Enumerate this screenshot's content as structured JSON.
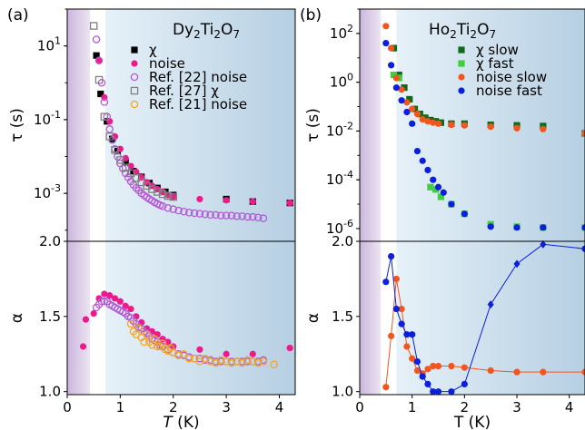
{
  "colors": {
    "black": "#000000",
    "pink": "#ee1a8c",
    "purple_open": "#b45ad6",
    "gray_open": "#808080",
    "orange_open": "#f5a623",
    "dark_green": "#0f6b17",
    "light_green": "#3ecf3e",
    "orange_red": "#f2561d",
    "blue": "#0a1fe0",
    "band_purple": "#cbb6dd",
    "band_blue_light": "#e6f1f8",
    "band_blue_dark": "#b6cfe2"
  },
  "chart_data": [
    {
      "id": "a-tau",
      "type": "scatter",
      "panel_label": "(a)",
      "title": "Dy₂Ti₂O₇",
      "title_parts": [
        "Dy",
        "2",
        "Ti",
        "2",
        "O",
        "7"
      ],
      "ylabel": "τ (s)",
      "xlabel": "",
      "xlim": [
        0,
        4.3
      ],
      "ylim": [
        5e-05,
        100
      ],
      "yscale": "log",
      "yticks": [
        {
          "v": 10,
          "label": "10",
          "sup": "1"
        },
        {
          "v": 0.1,
          "label": "10",
          "sup": "-1"
        },
        {
          "v": 0.001,
          "label": "10",
          "sup": "-3"
        }
      ],
      "legend": "top-right",
      "series": [
        {
          "name": "χ",
          "marker": "square-filled",
          "color": "#000000",
          "x": [
            0.55,
            0.63,
            0.75,
            0.85,
            0.95,
            1.1,
            1.25,
            1.4,
            1.55,
            1.7,
            1.85,
            2.0,
            3.0,
            3.5,
            4.2
          ],
          "y": [
            5.5,
            0.5,
            0.09,
            0.03,
            0.014,
            0.007,
            0.004,
            0.0028,
            0.0019,
            0.0014,
            0.0011,
            0.0009,
            0.0007,
            0.0006,
            0.00055
          ]
        },
        {
          "name": "noise",
          "marker": "circle-filled",
          "color": "#ee1a8c",
          "x": [
            0.6,
            0.7,
            0.8,
            0.9,
            1.0,
            1.1,
            1.2,
            1.3,
            1.4,
            1.5,
            1.6,
            1.7,
            1.8,
            1.9,
            2.0,
            2.5,
            3.0,
            3.5,
            4.2
          ],
          "y": [
            4.0,
            0.4,
            0.09,
            0.035,
            0.016,
            0.009,
            0.0055,
            0.0038,
            0.0027,
            0.002,
            0.0016,
            0.0013,
            0.0011,
            0.0009,
            0.0008,
            0.0007,
            0.00065,
            0.0006,
            0.00055
          ]
        },
        {
          "name": "Ref. [22] noise",
          "marker": "circle-open",
          "color": "#b45ad6",
          "x": [
            0.55,
            0.6,
            0.65,
            0.7,
            0.75,
            0.8,
            0.85,
            0.9,
            0.95,
            1.0,
            1.05,
            1.1,
            1.15,
            1.2,
            1.25,
            1.3,
            1.35,
            1.4,
            1.45,
            1.5,
            1.55,
            1.6,
            1.65,
            1.7,
            1.75,
            1.8,
            1.9,
            2.0,
            2.1,
            2.2,
            2.3,
            2.4,
            2.5,
            2.6,
            2.7,
            2.8,
            2.9,
            3.0,
            3.1,
            3.2,
            3.3,
            3.4,
            3.5,
            3.6,
            3.7
          ],
          "y": [
            15,
            4,
            1.0,
            0.3,
            0.12,
            0.055,
            0.028,
            0.016,
            0.01,
            0.0065,
            0.0047,
            0.0035,
            0.0027,
            0.0021,
            0.0017,
            0.0014,
            0.0012,
            0.001,
            0.00088,
            0.00078,
            0.0007,
            0.00063,
            0.00057,
            0.00052,
            0.00048,
            0.00045,
            0.0004,
            0.00037,
            0.00034,
            0.00032,
            0.0003,
            0.00029,
            0.00028,
            0.00027,
            0.00026,
            0.00026,
            0.00025,
            0.00025,
            0.00025,
            0.00024,
            0.00024,
            0.00023,
            0.00023,
            0.00022,
            0.00021
          ]
        },
        {
          "name": "Ref. [27] χ",
          "marker": "square-open",
          "color": "#808080",
          "x": [
            0.5,
            0.6,
            0.7,
            0.8,
            0.9,
            1.0,
            1.1,
            1.2,
            1.3,
            1.4,
            1.5,
            1.6,
            1.7,
            1.8,
            1.9,
            2.0
          ],
          "y": [
            35,
            1.2,
            0.12,
            0.035,
            0.015,
            0.008,
            0.005,
            0.0035,
            0.0026,
            0.002,
            0.0016,
            0.0013,
            0.0011,
            0.00095,
            0.00085,
            0.0008
          ]
        },
        {
          "name": "Ref. [21] noise",
          "marker": "circle-open",
          "color": "#f5a623",
          "x": [],
          "y": []
        }
      ]
    },
    {
      "id": "a-alpha",
      "type": "scatter",
      "ylabel": "α",
      "xlabel_parts": [
        "T",
        " (K)"
      ],
      "xlim": [
        0,
        4.3
      ],
      "ylim": [
        0.98,
        2.0
      ],
      "yticks": [
        {
          "v": 1.0,
          "label": "1.0"
        },
        {
          "v": 1.5,
          "label": "1.5"
        },
        {
          "v": 2.0,
          "label": "2.0"
        }
      ],
      "xticks": [
        0,
        1,
        2,
        3,
        4
      ],
      "series": [
        {
          "name": "noise",
          "marker": "circle-filled",
          "color": "#ee1a8c",
          "x": [
            0.3,
            0.35,
            0.5,
            0.6,
            0.7,
            0.8,
            0.9,
            1.0,
            1.1,
            1.2,
            1.3,
            1.4,
            1.5,
            1.6,
            1.7,
            1.8,
            1.9,
            2.0,
            2.5,
            3.0,
            3.5,
            4.2
          ],
          "y": [
            1.3,
            1.48,
            1.52,
            1.62,
            1.65,
            1.64,
            1.62,
            1.6,
            1.57,
            1.55,
            1.5,
            1.46,
            1.42,
            1.4,
            1.38,
            1.35,
            1.33,
            1.3,
            1.28,
            1.25,
            1.25,
            1.29
          ]
        },
        {
          "name": "Ref. [22] noise",
          "marker": "circle-open",
          "color": "#b45ad6",
          "x": [
            0.55,
            0.6,
            0.65,
            0.7,
            0.75,
            0.8,
            0.85,
            0.9,
            0.95,
            1.0,
            1.05,
            1.1,
            1.15,
            1.2,
            1.25,
            1.3,
            1.35,
            1.4,
            1.45,
            1.5,
            1.55,
            1.6,
            1.65,
            1.7,
            1.75,
            1.8,
            1.9,
            2.0,
            2.1,
            2.2,
            2.3,
            2.4,
            2.5,
            2.6,
            2.7,
            2.8,
            2.9,
            3.0,
            3.1,
            3.2,
            3.3,
            3.4,
            3.5,
            3.6,
            3.7
          ],
          "y": [
            1.56,
            1.58,
            1.6,
            1.6,
            1.6,
            1.58,
            1.57,
            1.56,
            1.55,
            1.54,
            1.53,
            1.52,
            1.5,
            1.49,
            1.47,
            1.45,
            1.43,
            1.42,
            1.4,
            1.39,
            1.37,
            1.35,
            1.34,
            1.33,
            1.31,
            1.3,
            1.28,
            1.26,
            1.25,
            1.24,
            1.23,
            1.22,
            1.22,
            1.21,
            1.21,
            1.2,
            1.2,
            1.2,
            1.2,
            1.2,
            1.2,
            1.2,
            1.2,
            1.2,
            1.21
          ]
        },
        {
          "name": "Ref. [21] noise",
          "marker": "circle-open",
          "color": "#f5a623",
          "x": [
            1.2,
            1.25,
            1.3,
            1.35,
            1.4,
            1.45,
            1.5,
            1.55,
            1.6,
            1.65,
            1.7,
            1.75,
            1.8,
            1.85,
            1.9,
            1.95,
            2.0,
            2.1,
            2.2,
            2.3,
            2.4,
            2.5,
            2.6,
            2.7,
            2.8,
            2.9,
            3.0,
            3.1,
            3.2,
            3.3,
            3.4,
            3.5,
            3.6,
            3.7,
            3.9
          ],
          "y": [
            1.45,
            1.4,
            1.38,
            1.42,
            1.36,
            1.33,
            1.38,
            1.33,
            1.31,
            1.35,
            1.3,
            1.3,
            1.32,
            1.28,
            1.27,
            1.29,
            1.26,
            1.24,
            1.25,
            1.22,
            1.22,
            1.2,
            1.22,
            1.2,
            1.19,
            1.21,
            1.2,
            1.19,
            1.2,
            1.19,
            1.21,
            1.2,
            1.19,
            1.2,
            1.18
          ]
        }
      ]
    },
    {
      "id": "b-tau",
      "type": "scatter",
      "panel_label": "(b)",
      "title": "Ho₂Ti₂O₇",
      "title_parts": [
        "Ho",
        "2",
        "Ti",
        "2",
        "O",
        "7"
      ],
      "ylabel": "τ (s)",
      "xlim": [
        0,
        4.3
      ],
      "ylim": [
        3e-07,
        1000
      ],
      "yscale": "log",
      "yticks": [
        {
          "v": 100,
          "label": "10",
          "sup": "2"
        },
        {
          "v": 1,
          "label": "10",
          "sup": "0"
        },
        {
          "v": 0.01,
          "label": "10",
          "sup": "-2"
        },
        {
          "v": 0.0001,
          "label": "10",
          "sup": "-4"
        },
        {
          "v": 1e-06,
          "label": "10",
          "sup": "-6"
        }
      ],
      "legend": "top-right",
      "series": [
        {
          "name": "χ slow",
          "marker": "square-filled",
          "color": "#0f6b17",
          "x": [
            0.65,
            0.75,
            0.85,
            0.95,
            1.05,
            1.15,
            1.25,
            1.35,
            1.45,
            1.55,
            1.75,
            2.0,
            2.5,
            3.0,
            3.5,
            4.3
          ],
          "y": [
            25,
            2.0,
            0.6,
            0.2,
            0.08,
            0.05,
            0.035,
            0.028,
            0.025,
            0.022,
            0.02,
            0.02,
            0.018,
            0.017,
            0.016,
            0.008
          ]
        },
        {
          "name": "χ fast",
          "marker": "square-filled",
          "color": "#3ecf3e",
          "x": [
            0.65,
            0.75,
            1.35,
            1.45,
            1.55,
            1.75,
            2.0,
            2.5,
            3.0,
            3.5,
            4.3
          ],
          "y": [
            2.0,
            1.5,
            5e-05,
            4e-05,
            2e-05,
            1e-05,
            4e-06,
            1.5e-06,
            1.2e-06,
            1.1e-06,
            1.1e-06
          ]
        },
        {
          "name": "noise slow",
          "marker": "circle-filled",
          "color": "#f2561d",
          "x": [
            0.5,
            0.6,
            0.7,
            0.8,
            0.9,
            1.0,
            1.1,
            1.2,
            1.3,
            1.4,
            1.5,
            1.75,
            2.0,
            2.5,
            3.0,
            3.5,
            4.3
          ],
          "y": [
            200,
            25,
            1.5,
            0.5,
            0.15,
            0.08,
            0.05,
            0.03,
            0.025,
            0.022,
            0.02,
            0.018,
            0.017,
            0.015,
            0.013,
            0.012,
            0.008
          ]
        },
        {
          "name": "noise fast",
          "marker": "circle-filled",
          "color": "#0a1fe0",
          "x": [
            0.5,
            0.6,
            0.7,
            0.8,
            0.9,
            1.0,
            1.1,
            1.2,
            1.3,
            1.4,
            1.5,
            1.6,
            1.75,
            2.0,
            2.5,
            3.0,
            3.5,
            4.3
          ],
          "y": [
            40,
            5,
            0.6,
            0.18,
            0.06,
            0.02,
            0.0015,
            0.0006,
            0.00025,
            0.0001,
            5e-05,
            3e-05,
            1e-05,
            4e-06,
            1.2e-06,
            1.1e-06,
            1.1e-06,
            1.1e-06
          ]
        }
      ]
    },
    {
      "id": "b-alpha",
      "type": "line",
      "ylabel": "α",
      "xlabel": "T (K)",
      "xlim": [
        0,
        4.3
      ],
      "ylim": [
        0.98,
        2.0
      ],
      "yticks": [
        {
          "v": 1.0,
          "label": "1.0"
        },
        {
          "v": 1.5,
          "label": "1.5"
        },
        {
          "v": 2.0,
          "label": "2.0"
        }
      ],
      "xticks": [
        0,
        1,
        2,
        3,
        4
      ],
      "series": [
        {
          "name": "noise slow",
          "marker": "circle-filled",
          "color": "#f2561d",
          "x": [
            0.5,
            0.6,
            0.7,
            0.8,
            0.9,
            1.0,
            1.1,
            1.2,
            1.3,
            1.4,
            1.5,
            1.75,
            2.0,
            2.5,
            3.0,
            3.5,
            4.3
          ],
          "y": [
            1.03,
            1.37,
            1.75,
            1.55,
            1.3,
            1.22,
            1.14,
            1.12,
            1.15,
            1.17,
            1.17,
            1.17,
            1.16,
            1.14,
            1.13,
            1.13,
            1.13
          ]
        },
        {
          "name": "noise fast",
          "marker": "circle-filled",
          "color": "#0a1fe0",
          "x": [
            0.5,
            0.6,
            0.7,
            0.8,
            0.9,
            1.0,
            1.1,
            1.2,
            1.3,
            1.4,
            1.5,
            1.75,
            2.0,
            2.5,
            3.0,
            3.5,
            4.3
          ],
          "y": [
            1.73,
            1.9,
            1.55,
            1.45,
            1.38,
            1.38,
            1.2,
            1.1,
            1.05,
            1.0,
            1.0,
            1.0,
            1.05,
            1.58,
            1.85,
            1.98,
            1.95
          ]
        }
      ]
    }
  ]
}
